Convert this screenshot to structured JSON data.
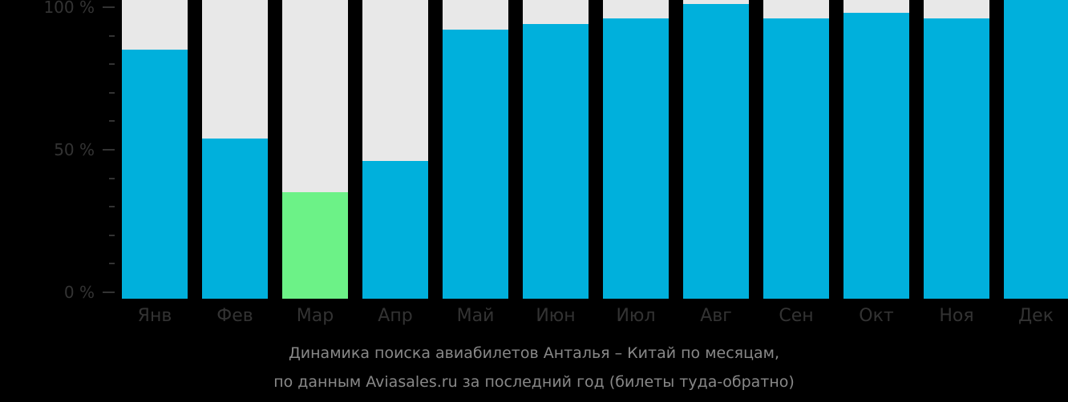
{
  "chart_data": {
    "type": "bar",
    "title": "Динамика поиска авиабилетов Анталья – Китай по месяцам,",
    "subtitle": "по данным Aviasales.ru за последний год (билеты туда-обратно)",
    "categories": [
      "Янв",
      "Фев",
      "Мар",
      "Апр",
      "Май",
      "Июн",
      "Июл",
      "Авг",
      "Сен",
      "Окт",
      "Ноя",
      "Дек"
    ],
    "values": [
      85,
      54,
      35,
      46,
      92,
      94,
      96,
      101,
      96,
      98,
      96,
      103
    ],
    "highlight_index": 2,
    "xlabel": "",
    "ylabel": "",
    "ylim": [
      0,
      100
    ],
    "yticks": [
      "0 %",
      "50 %",
      "100 %"
    ],
    "minor_ticks_between": 4,
    "grid": false,
    "legend": "none",
    "colors": {
      "bar": "#00b0dc",
      "highlight": "#6cf287",
      "track": "#e8e8e8",
      "background": "#000000",
      "axis_text": "#333333",
      "caption_text": "#888888"
    }
  }
}
